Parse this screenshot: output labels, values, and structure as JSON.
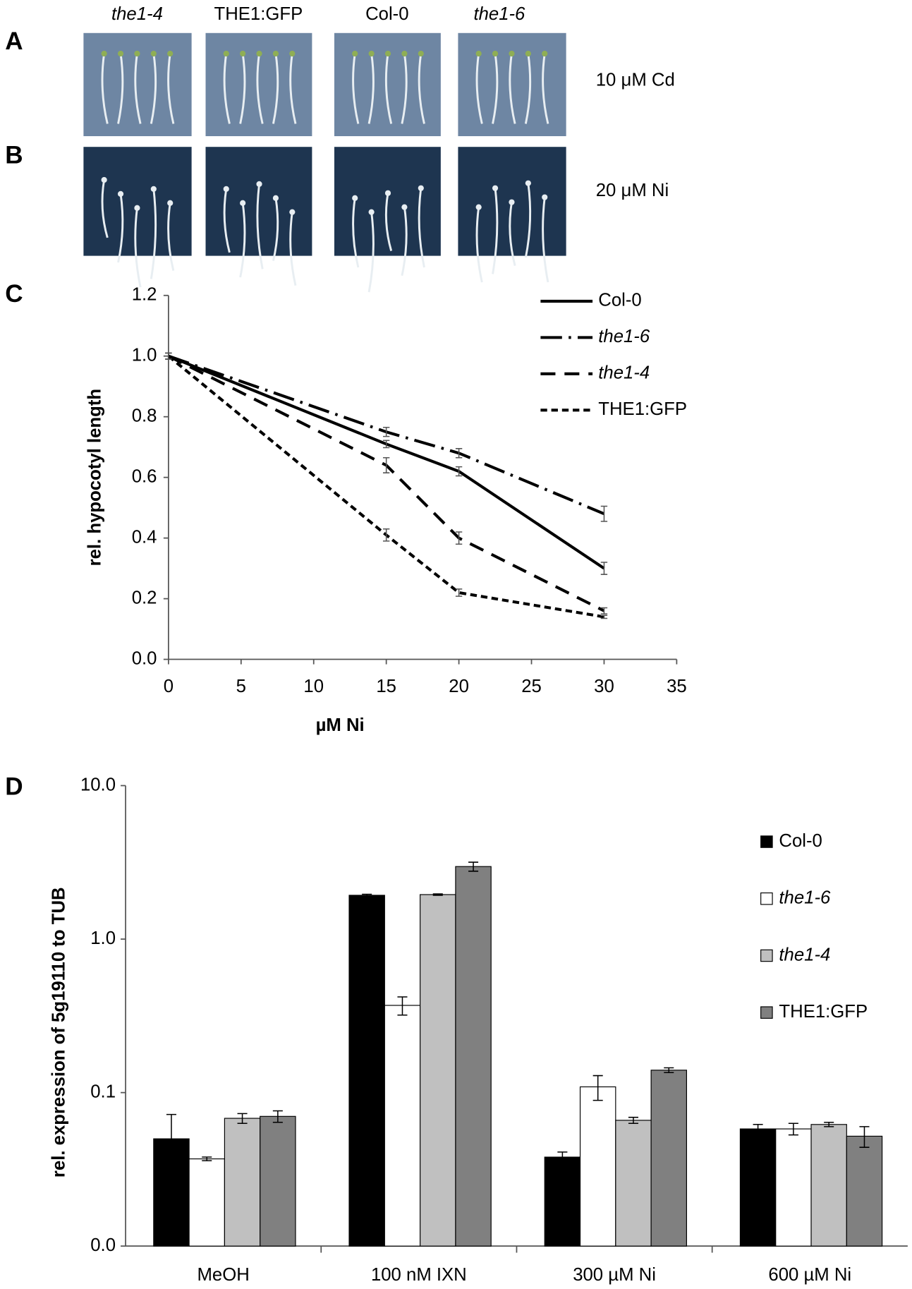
{
  "panels": {
    "labels": [
      "A",
      "B",
      "C",
      "D"
    ]
  },
  "photos": {
    "columns": [
      "the1-4",
      "THE1:GFP",
      "Col-0",
      "the1-6"
    ],
    "rows": [
      "10 μM Cd",
      "20 μM Ni"
    ]
  },
  "chart_data": [
    {
      "type": "line",
      "xlabel": "µM Ni",
      "ylabel": "rel. hypocotyl length",
      "x": [
        0,
        15,
        20,
        30
      ],
      "series": [
        {
          "name": "Col-0",
          "color": "#000000",
          "dash": "solid",
          "italic": false,
          "values": [
            1.0,
            0.71,
            0.62,
            0.3
          ],
          "errors": [
            0.01,
            0.012,
            0.015,
            0.02
          ]
        },
        {
          "name": "the1-6",
          "color": "#000000",
          "dash": "dashdot",
          "italic": true,
          "values": [
            1.0,
            0.75,
            0.68,
            0.48
          ],
          "errors": [
            0.01,
            0.015,
            0.015,
            0.025
          ]
        },
        {
          "name": "the1-4",
          "color": "#000000",
          "dash": "dash",
          "italic": true,
          "values": [
            1.0,
            0.64,
            0.4,
            0.16
          ],
          "errors": [
            0.01,
            0.025,
            0.02,
            0.01
          ]
        },
        {
          "name": "THE1:GFP",
          "color": "#000000",
          "dash": "shortdash",
          "italic": false,
          "values": [
            1.0,
            0.41,
            0.22,
            0.14
          ],
          "errors": [
            0.01,
            0.02,
            0.012,
            0.005
          ]
        }
      ],
      "xlim": [
        0,
        35
      ],
      "xticks": [
        0,
        5,
        10,
        15,
        20,
        25,
        30,
        35
      ],
      "ylim": [
        0,
        1.2
      ],
      "yticks": [
        {
          "value": 0,
          "label": "0.0"
        },
        0.2,
        0.4,
        0.6,
        0.8,
        {
          "value": 1,
          "label": "1.0"
        },
        1.2
      ],
      "legend": "top-right"
    },
    {
      "type": "bar",
      "log_scale": true,
      "ylabel": "rel. expression of 5g19110 to TUB",
      "categories": [
        "MeOH",
        "100 nM IXN",
        "300 µM Ni",
        "600 µM Ni"
      ],
      "series": [
        {
          "name": "Col-0",
          "color": "#000000",
          "italic": false,
          "values": [
            0.05,
            1.93,
            0.038,
            0.058
          ],
          "errors": [
            0.022,
            0.03,
            0.003,
            0.004
          ]
        },
        {
          "name": "the1-6",
          "color": "#ffffff",
          "italic": true,
          "values": [
            0.037,
            0.37,
            0.109,
            0.058
          ],
          "errors": [
            0.001,
            0.05,
            0.02,
            0.005
          ]
        },
        {
          "name": "the1-4",
          "color": "#c0c0c0",
          "italic": true,
          "values": [
            0.068,
            1.95,
            0.066,
            0.062
          ],
          "errors": [
            0.005,
            0.02,
            0.003,
            0.002
          ]
        },
        {
          "name": "THE1:GFP",
          "color": "#808080",
          "italic": false,
          "values": [
            0.07,
            2.97,
            0.14,
            0.052
          ],
          "errors": [
            0.006,
            0.2,
            0.005,
            0.008
          ]
        }
      ],
      "ylim": [
        0.01,
        10
      ],
      "yticks": [
        {
          "value": 0.01,
          "label": "0.0"
        },
        0.1,
        {
          "value": 1,
          "label": "1.0"
        },
        {
          "value": 10,
          "label": "10.0"
        }
      ],
      "legend": "right"
    }
  ]
}
